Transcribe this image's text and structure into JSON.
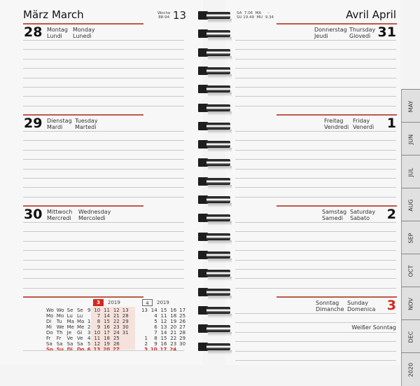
{
  "left_page": {
    "month": "März  March",
    "week_label": "Woche",
    "week_range": "88-94",
    "week_number": "13",
    "days": [
      {
        "num": "28",
        "de": "Montag",
        "fr": "Lundi",
        "en": "Monday",
        "it": "Lunedì"
      },
      {
        "num": "29",
        "de": "Dienstag",
        "fr": "Mardi",
        "en": "Tuesday",
        "it": "Martedì"
      },
      {
        "num": "30",
        "de": "Mittwoch",
        "fr": "Mercredi",
        "en": "Wednesday",
        "it": "Mercoledì"
      }
    ],
    "mini_calendars": [
      {
        "month": "3",
        "year": "2019",
        "active": true,
        "weekday_headers": [
          "Wo",
          "Wo",
          "Se",
          "Se"
        ],
        "weeks": [
          "9",
          "10",
          "11",
          "12",
          "13"
        ],
        "rows": [
          {
            "labels": [
              "Mo",
              "Mo",
              "Lu",
              "Lu"
            ],
            "days": [
              "",
              "7",
              "14",
              "21",
              "28"
            ]
          },
          {
            "labels": [
              "Di",
              "Tu",
              "Ma",
              "Ma"
            ],
            "days": [
              "1",
              "8",
              "15",
              "22",
              "29"
            ]
          },
          {
            "labels": [
              "Mi",
              "We",
              "Me",
              "Me"
            ],
            "days": [
              "2",
              "9",
              "16",
              "23",
              "30"
            ]
          },
          {
            "labels": [
              "Do",
              "Th",
              "Je",
              "Gi"
            ],
            "days": [
              "3",
              "10",
              "17",
              "24",
              "31"
            ]
          },
          {
            "labels": [
              "Fr",
              "Fr",
              "Ve",
              "Ve"
            ],
            "days": [
              "4",
              "11",
              "18",
              "25",
              ""
            ]
          },
          {
            "labels": [
              "Sa",
              "Sa",
              "Sa",
              "Sa"
            ],
            "days": [
              "5",
              "12",
              "19",
              "26",
              ""
            ]
          },
          {
            "labels": [
              "So",
              "Su",
              "Di",
              "Do"
            ],
            "days": [
              "6",
              "13",
              "20",
              "27",
              ""
            ]
          }
        ]
      },
      {
        "month": "4",
        "year": "2019",
        "active": false,
        "weeks": [
          "13",
          "14",
          "15",
          "16",
          "17"
        ],
        "rows": [
          {
            "days": [
              "",
              "4",
              "11",
              "18",
              "25"
            ]
          },
          {
            "days": [
              "",
              "5",
              "12",
              "19",
              "26"
            ]
          },
          {
            "days": [
              "",
              "6",
              "13",
              "20",
              "27"
            ]
          },
          {
            "days": [
              "",
              "7",
              "14",
              "21",
              "28"
            ]
          },
          {
            "days": [
              "1",
              "8",
              "15",
              "22",
              "29"
            ]
          },
          {
            "days": [
              "2",
              "9",
              "16",
              "23",
              "30"
            ]
          },
          {
            "days": [
              "3",
              "10",
              "17",
              "24",
              ""
            ]
          }
        ]
      }
    ]
  },
  "right_page": {
    "month": "Avril  April",
    "sun_moon": {
      "sa_label": "SA",
      "sa": "7.06",
      "ma_label": "MA",
      "ma": "–",
      "su_label": "SU",
      "su": "19.49",
      "mu_label": "MU",
      "mu": "9.34"
    },
    "days": [
      {
        "num": "31",
        "de": "Donnerstag",
        "fr": "Jeudi",
        "en": "Thursday",
        "it": "Giovedì"
      },
      {
        "num": "1",
        "de": "Freitag",
        "fr": "Vendredi",
        "en": "Friday",
        "it": "Venerdì"
      },
      {
        "num": "2",
        "de": "Samstag",
        "fr": "Samedi",
        "en": "Saturday",
        "it": "Sabato"
      },
      {
        "num": "3",
        "de": "Sonntag",
        "fr": "Dimanche",
        "en": "Sunday",
        "it": "Domenica",
        "holiday": "Weißer Sonntag"
      }
    ]
  },
  "month_tabs": [
    "MAY",
    "JUN",
    "JUL",
    "AUG",
    "SEP",
    "OCT",
    "NOV",
    "DEC",
    "2020"
  ],
  "colors": {
    "accent_red": "#d4281e",
    "rule_red": "#c0584a",
    "paper": "#f7f7f7",
    "tab_gray": "#e0e0e0"
  }
}
